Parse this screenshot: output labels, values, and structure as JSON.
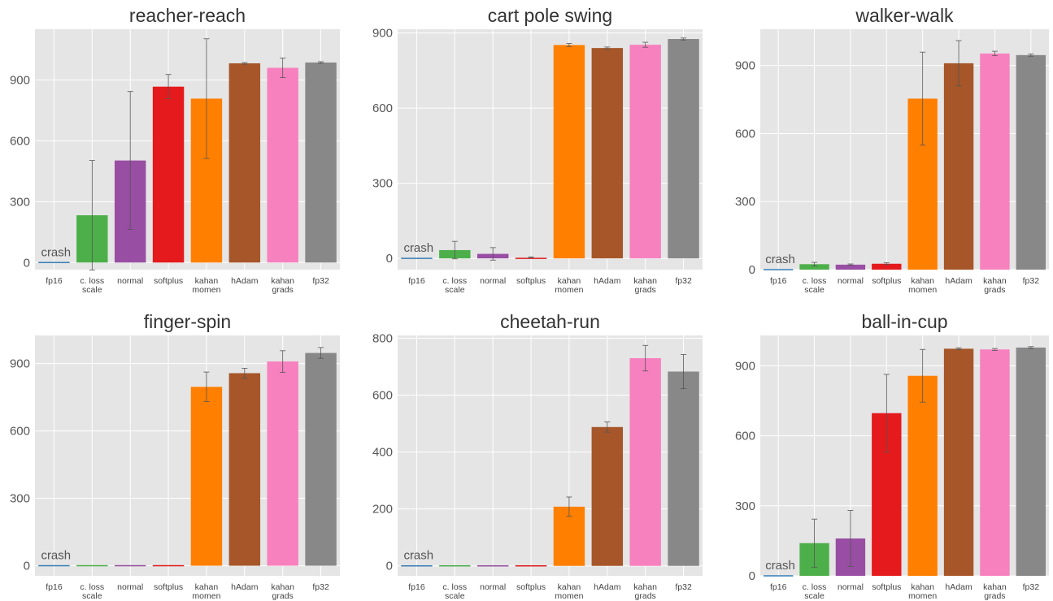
{
  "chart_data": [
    {
      "type": "bar",
      "title": "reacher-reach",
      "categories": [
        "fp16",
        "c. loss\nscale",
        "normal",
        "softplus",
        "kahan\nmomen",
        "hAdam",
        "kahan\ngrads",
        "fp32"
      ],
      "values": [
        0,
        233,
        503,
        867,
        808,
        982,
        960,
        986
      ],
      "errors": [
        0,
        270,
        340,
        60,
        295,
        4,
        48,
        4
      ],
      "ylim": [
        -35,
        1150
      ],
      "yticks": [
        0,
        300,
        600,
        900
      ],
      "annotation": "crash",
      "grid": true
    },
    {
      "type": "bar",
      "title": "cart pole swing",
      "categories": [
        "fp16",
        "c. loss\nscale",
        "normal",
        "softplus",
        "kahan\nmomen",
        "hAdam",
        "kahan\ngrads",
        "fp32"
      ],
      "values": [
        0,
        33,
        18,
        4,
        852,
        840,
        853,
        876
      ],
      "errors": [
        0,
        35,
        25,
        2,
        6,
        4,
        10,
        4
      ],
      "ylim": [
        -45,
        915
      ],
      "yticks": [
        0,
        300,
        600,
        900
      ],
      "annotation": "crash",
      "grid": true
    },
    {
      "type": "bar",
      "title": "walker-walk",
      "categories": [
        "fp16",
        "c. loss\nscale",
        "normal",
        "softplus",
        "kahan\nmomen",
        "hAdam",
        "kahan\ngrads",
        "fp32"
      ],
      "values": [
        0,
        24,
        22,
        26,
        754,
        910,
        953,
        946
      ],
      "errors": [
        0,
        8,
        3,
        4,
        205,
        100,
        10,
        5
      ],
      "ylim": [
        0,
        1060
      ],
      "yticks": [
        0,
        300,
        600,
        900
      ],
      "annotation": "crash",
      "grid": true
    },
    {
      "type": "bar",
      "title": "finger-spin",
      "categories": [
        "fp16",
        "c. loss\nscale",
        "normal",
        "softplus",
        "kahan\nmomen",
        "hAdam",
        "kahan\ngrads",
        "fp32"
      ],
      "values": [
        0,
        0,
        0,
        0,
        796,
        857,
        909,
        947
      ],
      "errors": [
        0,
        0,
        0,
        0,
        66,
        22,
        48,
        24
      ],
      "ylim": [
        -45,
        1025
      ],
      "yticks": [
        0,
        300,
        600,
        900
      ],
      "annotation": "crash",
      "grid": true
    },
    {
      "type": "bar",
      "title": "cheetah-run",
      "categories": [
        "fp16",
        "c. loss\nscale",
        "normal",
        "softplus",
        "kahan\nmomen",
        "hAdam",
        "kahan\ngrads",
        "fp32"
      ],
      "values": [
        0,
        0,
        0,
        0,
        208,
        488,
        730,
        683
      ],
      "errors": [
        0,
        0,
        0,
        0,
        34,
        18,
        45,
        60
      ],
      "ylim": [
        -35,
        810
      ],
      "yticks": [
        0,
        200,
        400,
        600,
        800
      ],
      "annotation": "crash",
      "grid": true
    },
    {
      "type": "bar",
      "title": "ball-in-cup",
      "categories": [
        "fp16",
        "c. loss\nscale",
        "normal",
        "softplus",
        "kahan\nmomen",
        "hAdam",
        "kahan\ngrads",
        "fp32"
      ],
      "values": [
        0,
        140,
        160,
        697,
        857,
        973,
        970,
        978
      ],
      "errors": [
        0,
        103,
        120,
        166,
        113,
        4,
        4,
        4
      ],
      "ylim": [
        0,
        1030
      ],
      "yticks": [
        0,
        300,
        600,
        900
      ],
      "annotation": "crash",
      "grid": true
    }
  ],
  "colors": {
    "plot_background": "#e5e5e5",
    "grid": "#ffffff",
    "bars": [
      "#377eb8",
      "#4daf4a",
      "#984ea3",
      "#e41a1c",
      "#ff7f00",
      "#a65628",
      "#f781bf",
      "#888888"
    ],
    "error_bar": "#555555"
  }
}
